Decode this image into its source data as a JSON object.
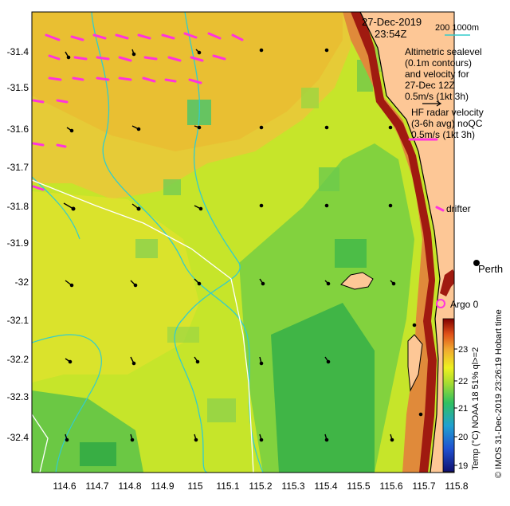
{
  "map": {
    "datetime_date": "27-Dec-2019",
    "datetime_time": "23:54Z",
    "isobath_label": "200   1000m",
    "legend": {
      "altimetry_lines": [
        "Altimetric sealevel",
        "(0.1m contours)",
        "and velocity for",
        "27-Dec 12Z",
        "0.5m/s (1kt 3h)"
      ],
      "hf_lines": [
        "HF radar velocity",
        "(3-6h avg) noQC",
        "0.5m/s (1kt 3h)"
      ],
      "drifter": "drifter",
      "argo": "Argo 0",
      "place": "Perth"
    },
    "axes": {
      "x_ticks": [
        "114.6",
        "114.7",
        "114.8",
        "114.9",
        "115",
        "115.1",
        "115.2",
        "115.3",
        "115.4",
        "115.5",
        "115.6",
        "115.7",
        "115.8"
      ],
      "y_ticks": [
        "-31.4",
        "-31.5",
        "-31.6",
        "-31.7",
        "-31.8",
        "-31.9",
        "-32",
        "-32.1",
        "-32.2",
        "-32.3",
        "-32.4"
      ]
    },
    "colorbar": {
      "ticks": [
        "23",
        "22",
        "21",
        "20",
        "19"
      ],
      "label": "Temp (°C) NOAA 18 51% ql>=2",
      "range": [
        19,
        23.7
      ]
    },
    "credit": "© IMOS 31-Dec-2019 23:26:19 Hobart time",
    "colors": {
      "land": "#fdc796",
      "ocean_mid": "#c9e625",
      "contour": "#33cccc",
      "track": "#ffffff",
      "hf_arrow": "#ff33dd",
      "argo": "#ff33dd"
    }
  }
}
